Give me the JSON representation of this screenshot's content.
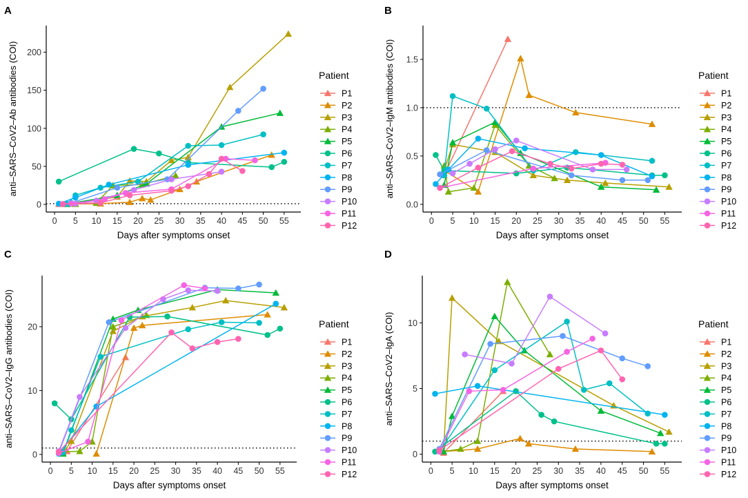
{
  "figure": {
    "xlabel": "Days after symptoms onset",
    "legend_title": "Patient",
    "patients": [
      "P1",
      "P2",
      "P3",
      "P4",
      "P5",
      "P6",
      "P7",
      "P8",
      "P9",
      "P10",
      "P11",
      "P12"
    ],
    "colors": {
      "P1": "#F8766D",
      "P2": "#DE8C00",
      "P3": "#B79F00",
      "P4": "#7CAE00",
      "P5": "#00BA38",
      "P6": "#00C08B",
      "P7": "#00BFC4",
      "P8": "#00B4F0",
      "P9": "#619CFF",
      "P10": "#C77CFF",
      "P11": "#F564E3",
      "P12": "#FF64B0"
    },
    "shapes": {
      "P1": "triangle",
      "P2": "triangle",
      "P3": "triangle",
      "P4": "triangle",
      "P5": "triangle",
      "P6": "circle",
      "P7": "circle",
      "P8": "circle",
      "P9": "circle",
      "P10": "circle",
      "P11": "circle",
      "P12": "circle"
    }
  },
  "chart_data": [
    {
      "panel": "A",
      "type": "line",
      "ylabel": "anti–SARS–CoV2–Ab antibodies (COI)",
      "xlabel": "Days after symptoms onset",
      "xlim": [
        -2,
        59
      ],
      "ylim": [
        -10,
        235
      ],
      "xticks": [
        0,
        5,
        10,
        15,
        20,
        25,
        30,
        35,
        40,
        45,
        50,
        55
      ],
      "yticks": [
        0,
        50,
        100,
        150,
        200
      ],
      "reference_line": 1,
      "series": [
        {
          "name": "P1",
          "x": [
            1,
            3,
            10
          ],
          "y": [
            0.5,
            1,
            2
          ]
        },
        {
          "name": "P2",
          "x": [
            3,
            11,
            18,
            21,
            23,
            30,
            34,
            52
          ],
          "y": [
            0.5,
            1,
            3,
            8,
            6,
            20,
            30,
            65
          ]
        },
        {
          "name": "P3",
          "x": [
            3,
            5,
            15,
            18,
            22,
            28,
            32,
            42,
            56
          ],
          "y": [
            0.5,
            1,
            10,
            31,
            30,
            58,
            62,
            154,
            224
          ]
        },
        {
          "name": "P4",
          "x": [
            5,
            10,
            14,
            21,
            29
          ],
          "y": [
            0.5,
            2,
            25,
            26,
            38
          ]
        },
        {
          "name": "P5",
          "x": [
            3,
            15,
            22,
            40,
            54
          ],
          "y": [
            0.5,
            12,
            27,
            102,
            120
          ]
        },
        {
          "name": "P6",
          "x": [
            1,
            19,
            25,
            32,
            52,
            55
          ],
          "y": [
            30,
            73,
            67,
            55,
            49,
            56
          ]
        },
        {
          "name": "P7",
          "x": [
            3,
            5,
            11,
            20,
            32,
            40,
            50
          ],
          "y": [
            0.5,
            12,
            22,
            30,
            77,
            78,
            92
          ]
        },
        {
          "name": "P8",
          "x": [
            1,
            5,
            13,
            32,
            55
          ],
          "y": [
            1,
            9,
            26,
            52,
            68
          ]
        },
        {
          "name": "P9",
          "x": [
            2,
            4,
            15,
            27,
            44,
            50
          ],
          "y": [
            0.5,
            2,
            22,
            33,
            123,
            152
          ]
        },
        {
          "name": "P10",
          "x": [
            5,
            10,
            19,
            28,
            40
          ],
          "y": [
            1,
            5,
            19,
            33,
            43
          ]
        },
        {
          "name": "P11",
          "x": [
            2,
            4,
            12,
            17,
            28,
            41,
            48
          ],
          "y": [
            0.5,
            1,
            7,
            15,
            20,
            60,
            58
          ]
        },
        {
          "name": "P12",
          "x": [
            2,
            11,
            18,
            28,
            32,
            37,
            40,
            45
          ],
          "y": [
            0.5,
            2,
            12,
            18,
            24,
            40,
            60,
            44
          ]
        }
      ]
    },
    {
      "panel": "B",
      "type": "line",
      "ylabel": "anti–SARS–CoV2–IgM antibodies (COI)",
      "xlabel": "Days after symptoms onset",
      "xlim": [
        -2,
        59
      ],
      "ylim": [
        -0.08,
        1.85
      ],
      "xticks": [
        0,
        5,
        10,
        15,
        20,
        25,
        30,
        35,
        40,
        45,
        50,
        55
      ],
      "yticks": [
        0.0,
        0.5,
        1.0,
        1.5
      ],
      "reference_line": 1,
      "series": [
        {
          "name": "P1",
          "x": [
            3,
            18
          ],
          "y": [
            0.3,
            1.71
          ]
        },
        {
          "name": "P2",
          "x": [
            3,
            11,
            21,
            23,
            34,
            52
          ],
          "y": [
            0.35,
            0.13,
            1.51,
            1.13,
            0.95,
            0.83
          ]
        },
        {
          "name": "P3",
          "x": [
            3,
            5,
            15,
            24,
            32,
            41,
            56
          ],
          "y": [
            0.35,
            0.62,
            0.54,
            0.3,
            0.25,
            0.22,
            0.18
          ]
        },
        {
          "name": "P4",
          "x": [
            3,
            4,
            10,
            15,
            23,
            29
          ],
          "y": [
            0.4,
            0.13,
            0.17,
            0.82,
            0.4,
            0.27
          ]
        },
        {
          "name": "P5",
          "x": [
            3,
            5,
            15,
            21,
            40,
            53
          ],
          "y": [
            0.2,
            0.64,
            0.85,
            0.53,
            0.18,
            0.15
          ]
        },
        {
          "name": "P6",
          "x": [
            1,
            3,
            20,
            32,
            52,
            55
          ],
          "y": [
            0.51,
            0.35,
            0.32,
            0.38,
            0.3,
            0.3
          ]
        },
        {
          "name": "P7",
          "x": [
            3,
            5,
            13,
            24,
            34,
            52
          ],
          "y": [
            0.3,
            1.12,
            0.99,
            0.35,
            0.54,
            0.45
          ]
        },
        {
          "name": "P8",
          "x": [
            1,
            4,
            11,
            22,
            40,
            52
          ],
          "y": [
            0.21,
            0.36,
            0.68,
            0.58,
            0.51,
            0.29
          ]
        },
        {
          "name": "P9",
          "x": [
            2,
            13,
            33,
            45,
            51
          ],
          "y": [
            0.31,
            0.56,
            0.3,
            0.25,
            0.25
          ]
        },
        {
          "name": "P10",
          "x": [
            5,
            9,
            15,
            20,
            38,
            46
          ],
          "y": [
            0.32,
            0.42,
            0.57,
            0.66,
            0.36,
            0.36
          ]
        },
        {
          "name": "P11",
          "x": [
            2,
            24,
            41
          ],
          "y": [
            0.17,
            0.37,
            0.43
          ]
        },
        {
          "name": "P12",
          "x": [
            2,
            11,
            19,
            28,
            33,
            40,
            45
          ],
          "y": [
            0.17,
            0.38,
            0.55,
            0.42,
            0.37,
            0.42,
            0.41
          ]
        }
      ]
    },
    {
      "panel": "C",
      "type": "line",
      "ylabel": "anti–SARS–CoV2–IgG antibodies (COI)",
      "xlabel": "Days after symptoms onset",
      "xlim": [
        -2,
        59
      ],
      "ylim": [
        -1.2,
        28
      ],
      "xticks": [
        0,
        5,
        10,
        15,
        20,
        25,
        30,
        35,
        40,
        45,
        50,
        55
      ],
      "yticks": [
        0,
        10,
        20
      ],
      "reference_line": 1,
      "series": [
        {
          "name": "P1",
          "x": [
            3,
            4,
            18
          ],
          "y": [
            0.2,
            0.5,
            15.2
          ]
        },
        {
          "name": "P2",
          "x": [
            11,
            20,
            22,
            52
          ],
          "y": [
            0.1,
            19.8,
            20.2,
            21.9
          ]
        },
        {
          "name": "P3",
          "x": [
            3,
            5,
            15,
            22,
            34,
            42,
            56
          ],
          "y": [
            0.1,
            2.1,
            19.3,
            21.6,
            23.0,
            24.1,
            23.0
          ]
        },
        {
          "name": "P4",
          "x": [
            3,
            7,
            10,
            15,
            23
          ],
          "y": [
            0.4,
            0.5,
            2.0,
            20.0,
            21.8
          ]
        },
        {
          "name": "P5",
          "x": [
            3,
            15,
            21,
            40,
            54
          ],
          "y": [
            0.1,
            21.2,
            22.6,
            25.8,
            25.3
          ]
        },
        {
          "name": "P6",
          "x": [
            1,
            5,
            19,
            28,
            52,
            55
          ],
          "y": [
            8.0,
            5.5,
            21.5,
            21.6,
            18.7,
            19.7
          ]
        },
        {
          "name": "P7",
          "x": [
            3,
            5,
            12,
            33,
            41,
            50
          ],
          "y": [
            0.3,
            3.8,
            15.3,
            19.6,
            20.7,
            20.6
          ]
        },
        {
          "name": "P8",
          "x": [
            2,
            11,
            54
          ],
          "y": [
            0.1,
            7.5,
            23.6
          ]
        },
        {
          "name": "P9",
          "x": [
            2,
            14,
            37,
            45,
            50
          ],
          "y": [
            0.3,
            20.7,
            26.1,
            26.0,
            26.6
          ]
        },
        {
          "name": "P10",
          "x": [
            2,
            7,
            18,
            27,
            33,
            40
          ],
          "y": [
            0.5,
            9.0,
            19.8,
            24.3,
            25.7,
            25.6
          ]
        },
        {
          "name": "P11",
          "x": [
            2,
            9,
            17,
            32,
            37
          ],
          "y": [
            0.2,
            2.0,
            21.0,
            26.5,
            26.0
          ]
        },
        {
          "name": "P12",
          "x": [
            2,
            29,
            34,
            40,
            45
          ],
          "y": [
            0.4,
            19.1,
            16.6,
            17.6,
            18.1
          ]
        }
      ]
    },
    {
      "panel": "D",
      "type": "line",
      "ylabel": "anti–SARS–CoV2–IgA (COI)",
      "xlabel": "Days after symptoms onset",
      "xlim": [
        -2,
        59
      ],
      "ylim": [
        -0.6,
        13.6
      ],
      "xticks": [
        0,
        5,
        10,
        15,
        20,
        25,
        30,
        35,
        40,
        45,
        50,
        55
      ],
      "yticks": [
        0,
        5,
        10
      ],
      "reference_line": 1,
      "series": [
        {
          "name": "P1",
          "x": [
            3,
            17
          ],
          "y": [
            0.1,
            4.8
          ]
        },
        {
          "name": "P2",
          "x": [
            3,
            11,
            21,
            23,
            34,
            52
          ],
          "y": [
            0.2,
            0.4,
            1.2,
            0.8,
            0.4,
            0.2
          ]
        },
        {
          "name": "P3",
          "x": [
            3,
            5,
            16,
            43,
            56
          ],
          "y": [
            0.2,
            11.9,
            8.6,
            3.7,
            1.7
          ]
        },
        {
          "name": "P4",
          "x": [
            3,
            7,
            11,
            18,
            28
          ],
          "y": [
            0.2,
            0.4,
            1.0,
            13.1,
            7.6
          ]
        },
        {
          "name": "P5",
          "x": [
            3,
            5,
            15,
            22,
            40,
            54
          ],
          "y": [
            0.2,
            2.9,
            10.5,
            7.9,
            3.3,
            1.6
          ]
        },
        {
          "name": "P6",
          "x": [
            1,
            20,
            26,
            29,
            53,
            55
          ],
          "y": [
            0.2,
            4.8,
            3.0,
            2.5,
            0.8,
            0.8
          ]
        },
        {
          "name": "P7",
          "x": [
            2,
            15,
            32,
            36,
            42,
            51
          ],
          "y": [
            0.2,
            6.4,
            10.1,
            4.9,
            5.4,
            3.1
          ]
        },
        {
          "name": "P8",
          "x": [
            1,
            11,
            55
          ],
          "y": [
            4.6,
            5.2,
            3.0
          ]
        },
        {
          "name": "P9",
          "x": [
            2,
            14,
            31,
            45,
            51
          ],
          "y": [
            0.4,
            8.4,
            9.0,
            7.3,
            6.7
          ]
        },
        {
          "name": "P10",
          "x": [
            8,
            19,
            28,
            41
          ],
          "y": [
            7.6,
            6.9,
            12.0,
            9.2
          ]
        },
        {
          "name": "P11",
          "x": [
            2,
            9,
            17,
            32,
            38
          ],
          "y": [
            0.2,
            4.8,
            4.9,
            7.8,
            8.8
          ]
        },
        {
          "name": "P12",
          "x": [
            2,
            30,
            40,
            45
          ],
          "y": [
            0.3,
            6.5,
            7.9,
            5.7
          ]
        }
      ]
    }
  ]
}
